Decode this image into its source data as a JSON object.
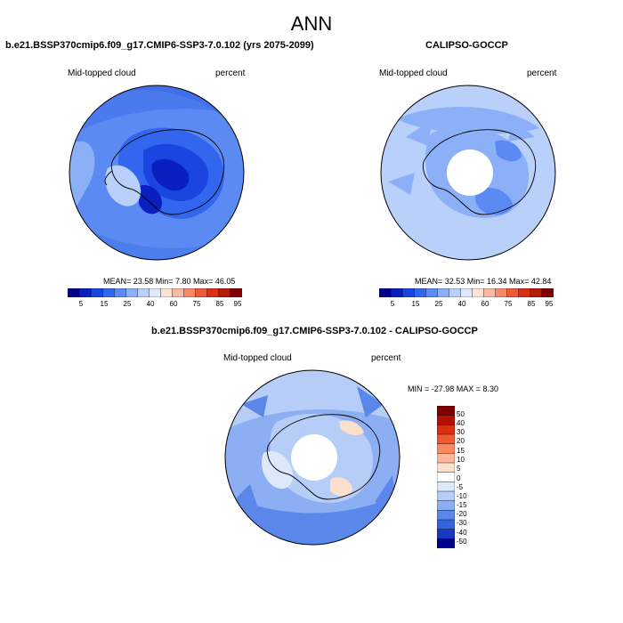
{
  "main_title": "ANN",
  "panels": [
    {
      "title": "b.e21.BSSP370cmip6.f09_g17.CMIP6-SSP3-7.0.102 (yrs 2075-2099)",
      "variable": "Mid-topped cloud",
      "units": "percent",
      "stats": "MEAN=  23.58  Min=   7.80  Max=  46.05",
      "colorbar_labels": [
        "5",
        "15",
        "25",
        "40",
        "60",
        "75",
        "85",
        "95"
      ]
    },
    {
      "title": "CALIPSO-GOCCP",
      "variable": "Mid-topped cloud",
      "units": "percent",
      "stats": "MEAN=  32.53  Min=  16.34  Max=  42.84",
      "colorbar_labels": [
        "5",
        "15",
        "25",
        "40",
        "60",
        "75",
        "85",
        "95"
      ]
    },
    {
      "title": "b.e21.BSSP370cmip6.f09_g17.CMIP6-SSP3-7.0.102 - CALIPSO-GOCCP",
      "variable": "Mid-topped cloud",
      "units": "percent",
      "stats": "MIN = -27.98 MAX =   8.30",
      "colorbar_labels": [
        "50",
        "40",
        "30",
        "20",
        "15",
        "10",
        "5",
        "0",
        "-5",
        "-10",
        "-15",
        "-20",
        "-30",
        "-40",
        "-50"
      ]
    }
  ],
  "colors": {
    "abs_scale": [
      "#00008b",
      "#0a1fc0",
      "#1a45e0",
      "#3366ee",
      "#5a8af2",
      "#8cb0f7",
      "#b8d0fa",
      "#dfe9fd",
      "#fde3d4",
      "#f9b8a0",
      "#f5896a",
      "#ef5a36",
      "#d93015",
      "#b51a08",
      "#7f0000"
    ],
    "diff_scale": [
      "#7f0000",
      "#b31004",
      "#d9300f",
      "#f05a2e",
      "#f98a60",
      "#fbb898",
      "#fde0cc",
      "#ffffff",
      "#dde8fb",
      "#b5cdf7",
      "#8caef2",
      "#5b87ea",
      "#3563e0",
      "#1838c0",
      "#00008b"
    ],
    "land_outline": "#000000"
  }
}
